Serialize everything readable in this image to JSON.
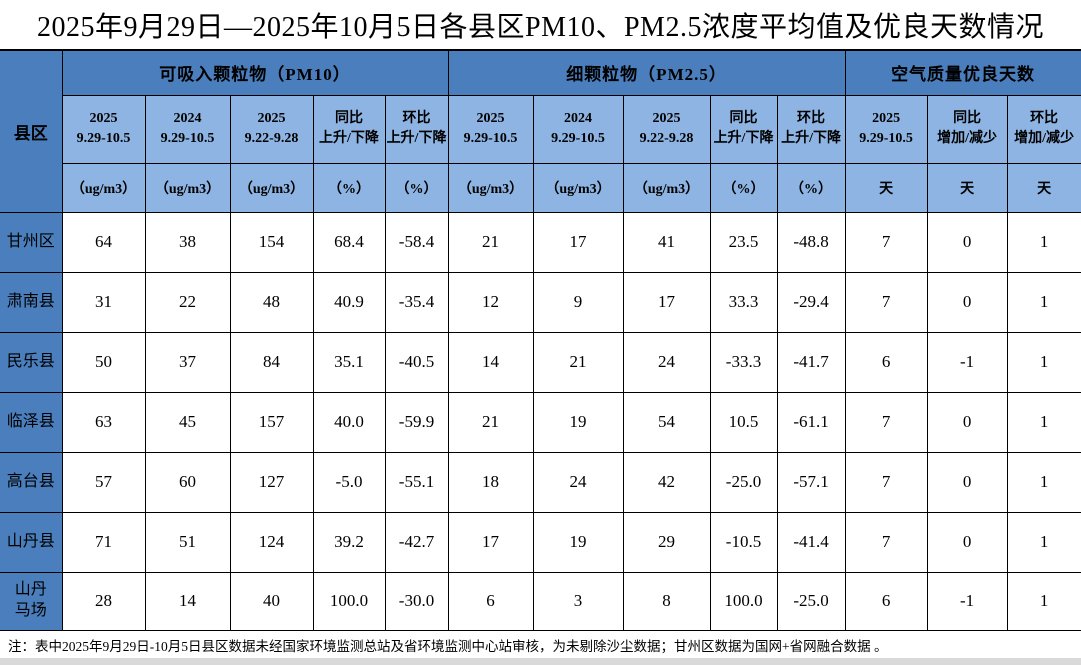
{
  "title": "2025年9月29日—2025年10月5日各县区PM10、PM2.5浓度平均值及优良天数情况",
  "table": {
    "corner_label": "县区",
    "groups": [
      {
        "label": "可吸入颗粒物（PM10）",
        "span": 5
      },
      {
        "label": "细颗粒物（PM2.5）",
        "span": 5
      },
      {
        "label": "空气质量优良天数",
        "span": 3
      }
    ],
    "columns": [
      {
        "label": "2025\n9.29-10.5",
        "unit": "（ug/m3）"
      },
      {
        "label": "2024\n9.29-10.5",
        "unit": "（ug/m3）"
      },
      {
        "label": "2025\n9.22-9.28",
        "unit": "（ug/m3）"
      },
      {
        "label": "同比\n上升/下降",
        "unit": "（%）"
      },
      {
        "label": "环比\n上升/下降",
        "unit": "（%）"
      },
      {
        "label": "2025\n9.29-10.5",
        "unit": "（ug/m3）"
      },
      {
        "label": "2024\n9.29-10.5",
        "unit": "（ug/m3）"
      },
      {
        "label": "2025\n9.22-9.28",
        "unit": "（ug/m3）"
      },
      {
        "label": "同比\n上升/下降",
        "unit": "（%）"
      },
      {
        "label": "环比\n上升/下降",
        "unit": "（%）"
      },
      {
        "label": "2025\n9.29-10.5",
        "unit": "天"
      },
      {
        "label": "同比\n增加/减少",
        "unit": "天"
      },
      {
        "label": "环比\n增加/减少",
        "unit": "天"
      }
    ],
    "rows": [
      {
        "county": "甘州区",
        "values": [
          "64",
          "38",
          "154",
          "68.4",
          "-58.4",
          "21",
          "17",
          "41",
          "23.5",
          "-48.8",
          "7",
          "0",
          "1"
        ]
      },
      {
        "county": "肃南县",
        "values": [
          "31",
          "22",
          "48",
          "40.9",
          "-35.4",
          "12",
          "9",
          "17",
          "33.3",
          "-29.4",
          "7",
          "0",
          "1"
        ]
      },
      {
        "county": "民乐县",
        "values": [
          "50",
          "37",
          "84",
          "35.1",
          "-40.5",
          "14",
          "21",
          "24",
          "-33.3",
          "-41.7",
          "6",
          "-1",
          "1"
        ]
      },
      {
        "county": "临泽县",
        "values": [
          "63",
          "45",
          "157",
          "40.0",
          "-59.9",
          "21",
          "19",
          "54",
          "10.5",
          "-61.1",
          "7",
          "0",
          "1"
        ]
      },
      {
        "county": "高台县",
        "values": [
          "57",
          "60",
          "127",
          "-5.0",
          "-55.1",
          "18",
          "24",
          "42",
          "-25.0",
          "-57.1",
          "7",
          "0",
          "1"
        ]
      },
      {
        "county": "山丹县",
        "values": [
          "71",
          "51",
          "124",
          "39.2",
          "-42.7",
          "17",
          "19",
          "29",
          "-10.5",
          "-41.4",
          "7",
          "0",
          "1"
        ]
      },
      {
        "county": "山丹\n马场",
        "values": [
          "28",
          "14",
          "40",
          "100.0",
          "-30.0",
          "6",
          "3",
          "8",
          "100.0",
          "-25.0",
          "6",
          "-1",
          "1"
        ]
      }
    ]
  },
  "footnote": "注：表中2025年9月29日-10月5日县区数据未经国家环境监测总站及省环境监测中心站审核，为未剔除沙尘数据；甘州区数据为国网+省网融合数据 。",
  "colors": {
    "header_dark_blue": "#4a7ebc",
    "header_light_blue": "#8db4e2",
    "border": "#000000",
    "text": "#000000",
    "bottom_strip": "#d9d9d9"
  }
}
